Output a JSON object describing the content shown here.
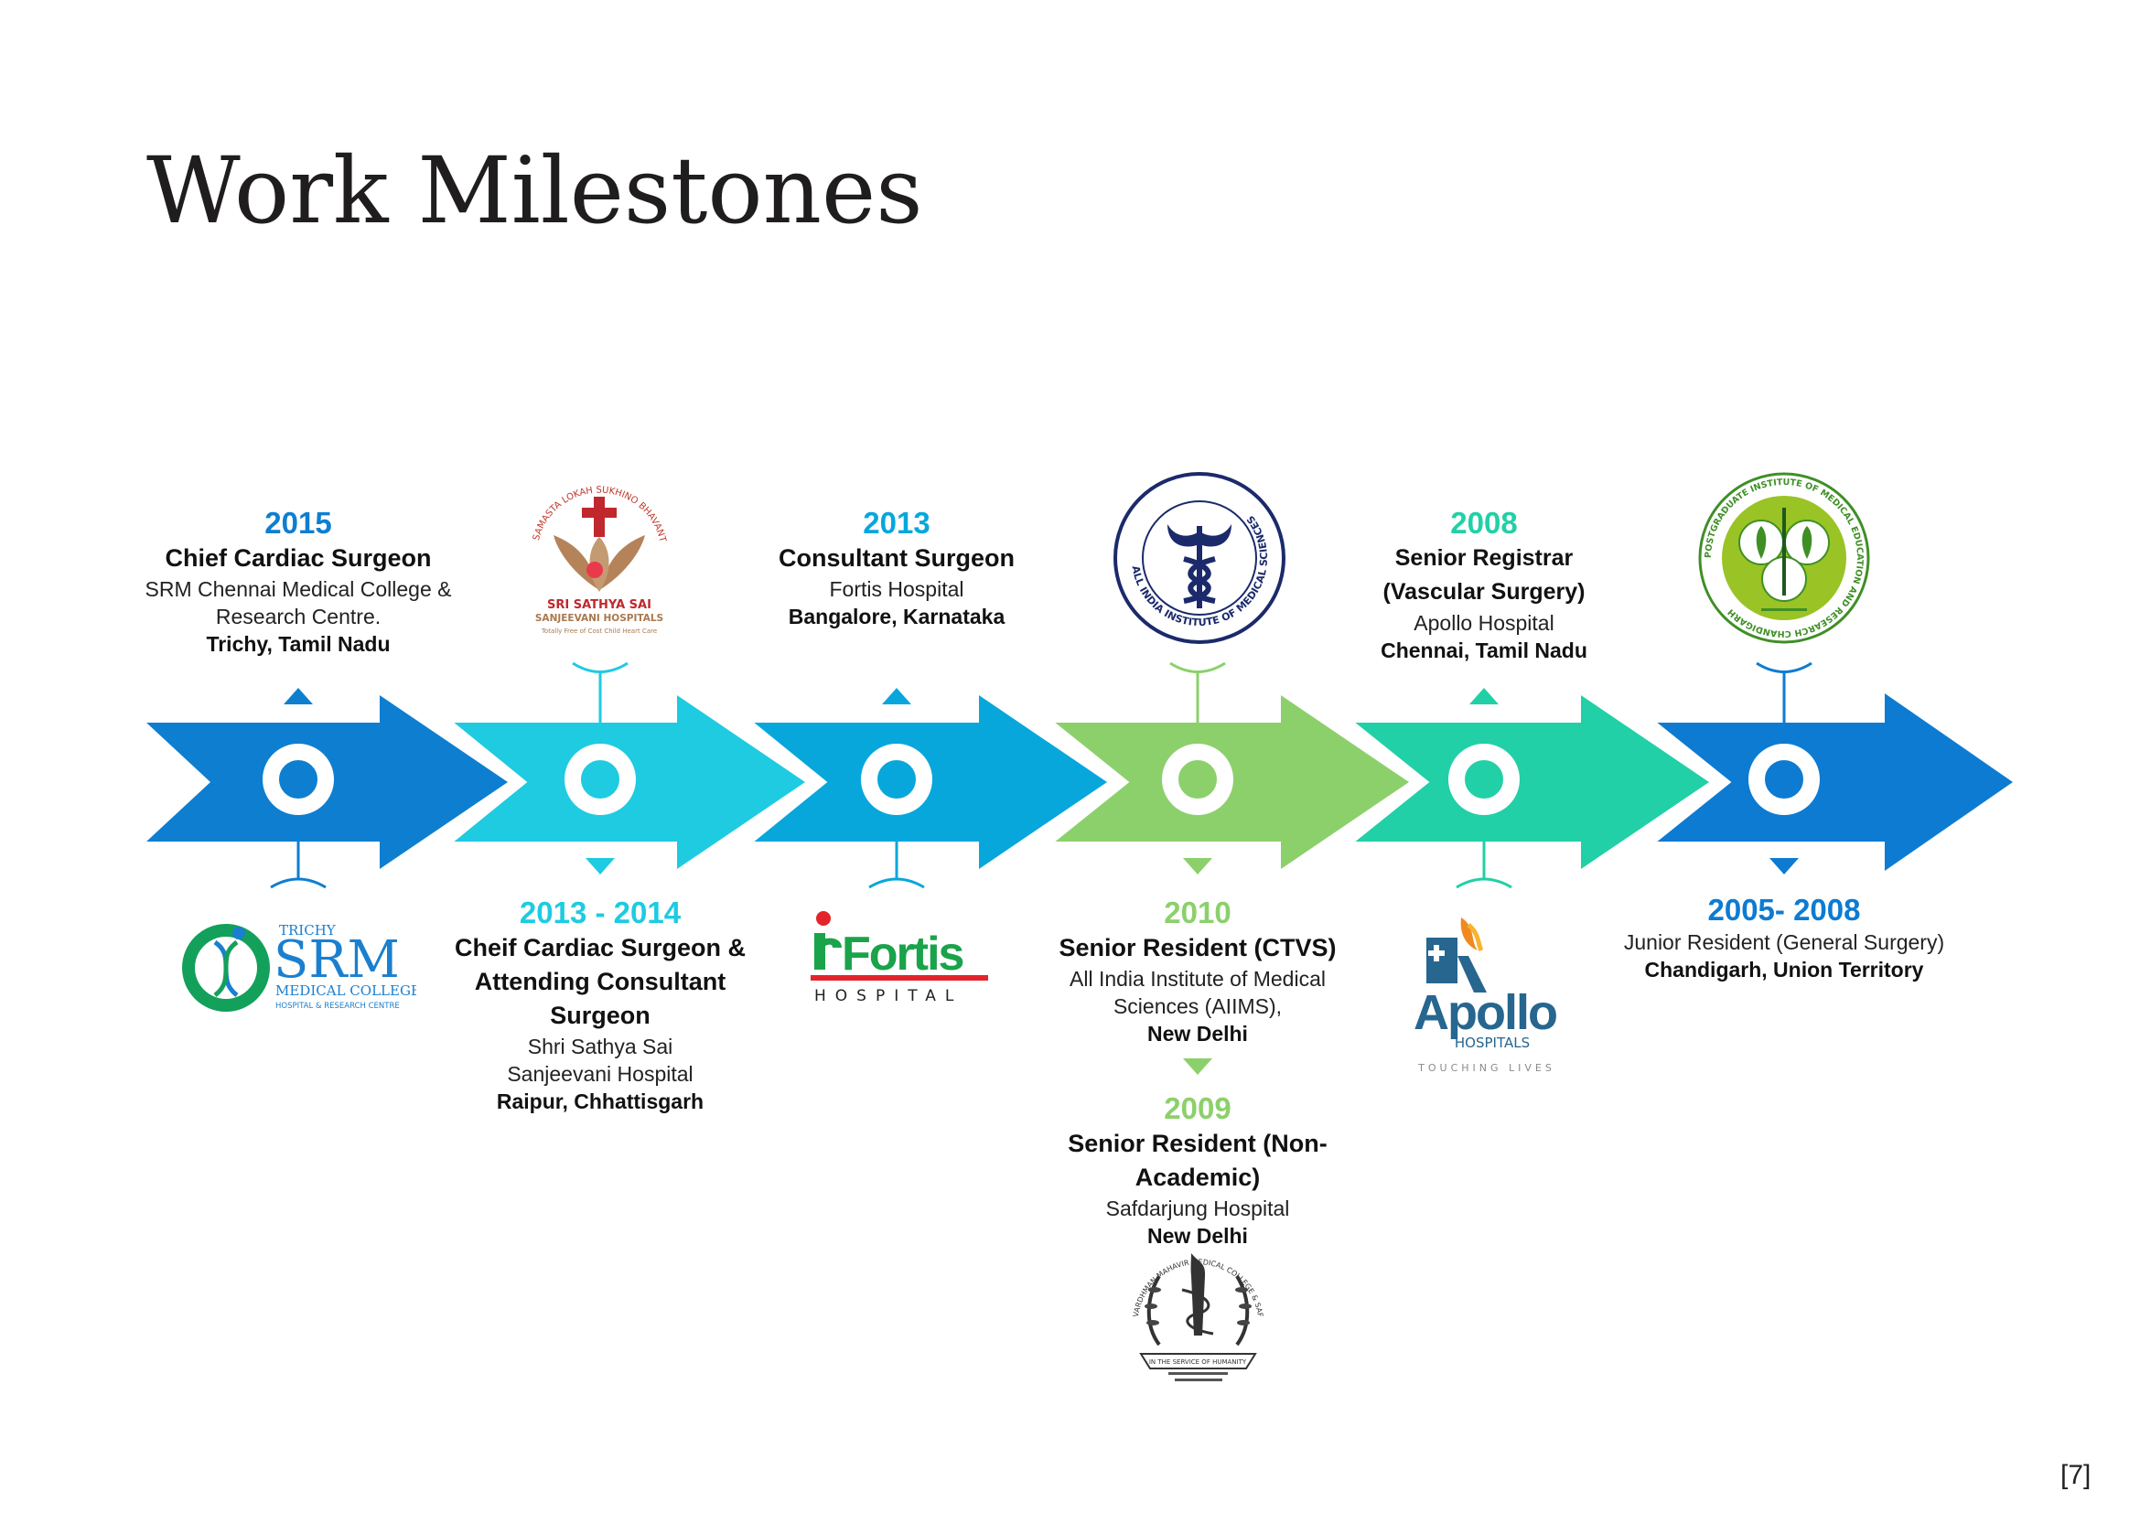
{
  "page": {
    "title": "Work Milestones",
    "page_number": "[7]"
  },
  "colors": {
    "blue": "#0e7ed0",
    "cyan": "#1ecbe1",
    "green": "#8cd06c",
    "teal": "#21d0a6",
    "deep_blue": "#0d7bd2"
  },
  "milestones": [
    {
      "year": "2015",
      "role": "Chief Cardiac Surgeon",
      "org": "SRM Chennai Medical College & Research Centre.",
      "location": "Trichy, Tamil Nadu",
      "logo": "srm-medical-college-logo"
    },
    {
      "year": "2013 - 2014",
      "role": "Cheif Cardiac Surgeon & Attending Consultant Surgeon",
      "org": "Shri Sathya Sai Sanjeevani Hospital",
      "location": "Raipur, Chhattisgarh",
      "logo": "sri-sathya-sai-logo"
    },
    {
      "year": "2013",
      "role": "Consultant Surgeon",
      "org": "Fortis Hospital",
      "location": "Bangalore, Karnataka",
      "logo": "fortis-hospital-logo"
    },
    {
      "year": "2010",
      "role": "Senior Resident (CTVS)",
      "org": "All India Institute of Medical Sciences (AIIMS),",
      "location": "New Delhi",
      "logo": "aiims-logo"
    },
    {
      "year": "2009",
      "role": "Senior Resident (Non-Academic)",
      "org": "Safdarjung Hospital",
      "location": "New Delhi",
      "logo": "safdarjung-logo"
    },
    {
      "year": "2008",
      "role": "Senior Registrar (Vascular Surgery)",
      "org": "Apollo Hospital",
      "location": "Chennai, Tamil Nadu",
      "logo": "apollo-hospitals-logo"
    },
    {
      "year": "2005- 2008",
      "role": "",
      "org": "Junior Resident (General Surgery)",
      "location": "Chandigarh, Union Territory",
      "logo": "pgimer-logo"
    }
  ],
  "logos": {
    "srm": {
      "top": "TRICHY",
      "name": "SRM",
      "line1": "MEDICAL COLLEGE",
      "line2": "HOSPITAL & RESEARCH CENTRE"
    },
    "sai": {
      "arc": "SAMASTA LOKAH SUKHINO BHAVANTU",
      "name": "SRI SATHYA SAI",
      "sub": "SANJEEVANI HOSPITALS",
      "tag": "Totally Free of Cost Child Heart Care"
    },
    "fortis": {
      "name": "Fortis",
      "sub": "HOSPITAL"
    },
    "aiims": {
      "ring": "ALL INDIA INSTITUTE OF MEDICAL SCIENCES"
    },
    "apollo": {
      "name": "Apollo",
      "sub": "HOSPITALS",
      "tag": "TOUCHING LIVES"
    },
    "pgimer": {
      "ring": "POSTGRADUATE INSTITUTE OF MEDICAL EDUCATION AND RESEARCH CHANDIGARH"
    },
    "safdarjung": {
      "ring": "VARDHMAN MAHAVIR MEDICAL COLLEGE & SAFDARJUNG HOSPITAL",
      "banner": "IN THE SERVICE OF HUMANITY"
    }
  }
}
